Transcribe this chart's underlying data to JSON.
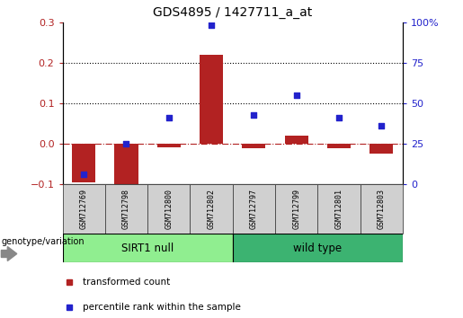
{
  "title": "GDS4895 / 1427711_a_at",
  "samples": [
    "GSM712769",
    "GSM712798",
    "GSM712800",
    "GSM712802",
    "GSM712797",
    "GSM712799",
    "GSM712801",
    "GSM712803"
  ],
  "transformed_count": [
    -0.095,
    -0.105,
    -0.008,
    0.22,
    -0.01,
    0.02,
    -0.01,
    -0.025
  ],
  "percentile_rank_pct": [
    6.0,
    25.0,
    41.0,
    98.0,
    43.0,
    55.0,
    41.0,
    36.0
  ],
  "left_ylim": [
    -0.1,
    0.3
  ],
  "right_ylim": [
    0,
    100
  ],
  "left_yticks": [
    -0.1,
    0.0,
    0.1,
    0.2,
    0.3
  ],
  "right_yticks": [
    0,
    25,
    50,
    75,
    100
  ],
  "bar_color": "#B22222",
  "dot_color": "#2222CC",
  "group1_label": "SIRT1 null",
  "group2_label": "wild type",
  "group1_color": "#90EE90",
  "group2_color": "#3CB371",
  "group1_count": 4,
  "group2_count": 4,
  "legend_bar_label": "transformed count",
  "legend_dot_label": "percentile rank within the sample",
  "genotype_label": "genotype/variation",
  "sample_box_color": "#D0D0D0",
  "fig_width": 5.15,
  "fig_height": 3.54,
  "dpi": 100
}
